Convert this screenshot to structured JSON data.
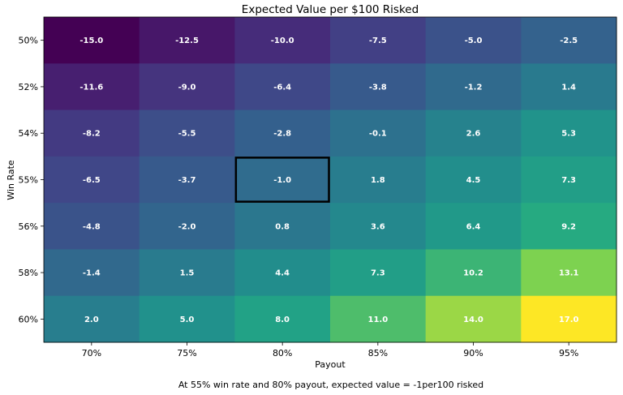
{
  "chart_data": {
    "type": "heatmap",
    "title": "Expected Value per $100 Risked",
    "xlabel": "Payout",
    "ylabel": "Win Rate",
    "x_categories": [
      "70%",
      "75%",
      "80%",
      "85%",
      "90%",
      "95%"
    ],
    "y_categories": [
      "50%",
      "52%",
      "54%",
      "55%",
      "56%",
      "58%",
      "60%"
    ],
    "values": [
      [
        -15.0,
        -12.5,
        -10.0,
        -7.5,
        -5.0,
        -2.5
      ],
      [
        -11.6,
        -9.0,
        -6.4,
        -3.8,
        -1.2,
        1.4
      ],
      [
        -8.2,
        -5.5,
        -2.8,
        -0.1,
        2.6,
        5.3
      ],
      [
        -6.5,
        -3.7,
        -1.0,
        1.8,
        4.5,
        7.3
      ],
      [
        -4.8,
        -2.0,
        0.8,
        3.6,
        6.4,
        9.2
      ],
      [
        -1.4,
        1.5,
        4.4,
        7.3,
        10.2,
        13.1
      ],
      [
        2.0,
        5.0,
        8.0,
        11.0,
        14.0,
        17.0
      ]
    ],
    "colormap": "viridis",
    "vmin": -15.0,
    "vmax": 17.0,
    "highlight": {
      "win_rate": "55%",
      "payout": "80%"
    },
    "caption": "At 55% win rate and 80% payout, expected value = -1per100 risked",
    "annotation_color": "#ffffff",
    "highlight_color": "#000000"
  }
}
